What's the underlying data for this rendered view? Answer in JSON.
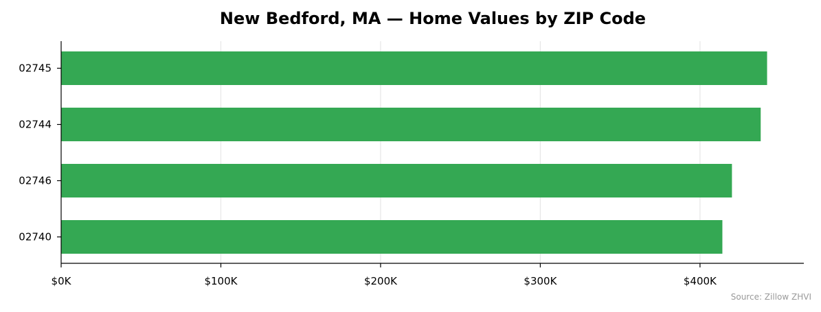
{
  "chart_data": {
    "type": "bar",
    "orientation": "horizontal",
    "title": "New Bedford, MA — Home Values by ZIP Code",
    "categories": [
      "02745",
      "02744",
      "02746",
      "02740"
    ],
    "values": [
      442000,
      438000,
      420000,
      414000
    ],
    "xlabel": "",
    "ylabel": "",
    "xlim": [
      0,
      465000
    ],
    "xticks": [
      0,
      100000,
      200000,
      300000,
      400000
    ],
    "xtick_labels": [
      "$0K",
      "$100K",
      "$200K",
      "$300K",
      "$400K"
    ],
    "grid": true,
    "legend": "none",
    "bar_color": "#34a853",
    "grid_color": "#e6e6e6",
    "source_note": "Source: Zillow ZHVI"
  }
}
